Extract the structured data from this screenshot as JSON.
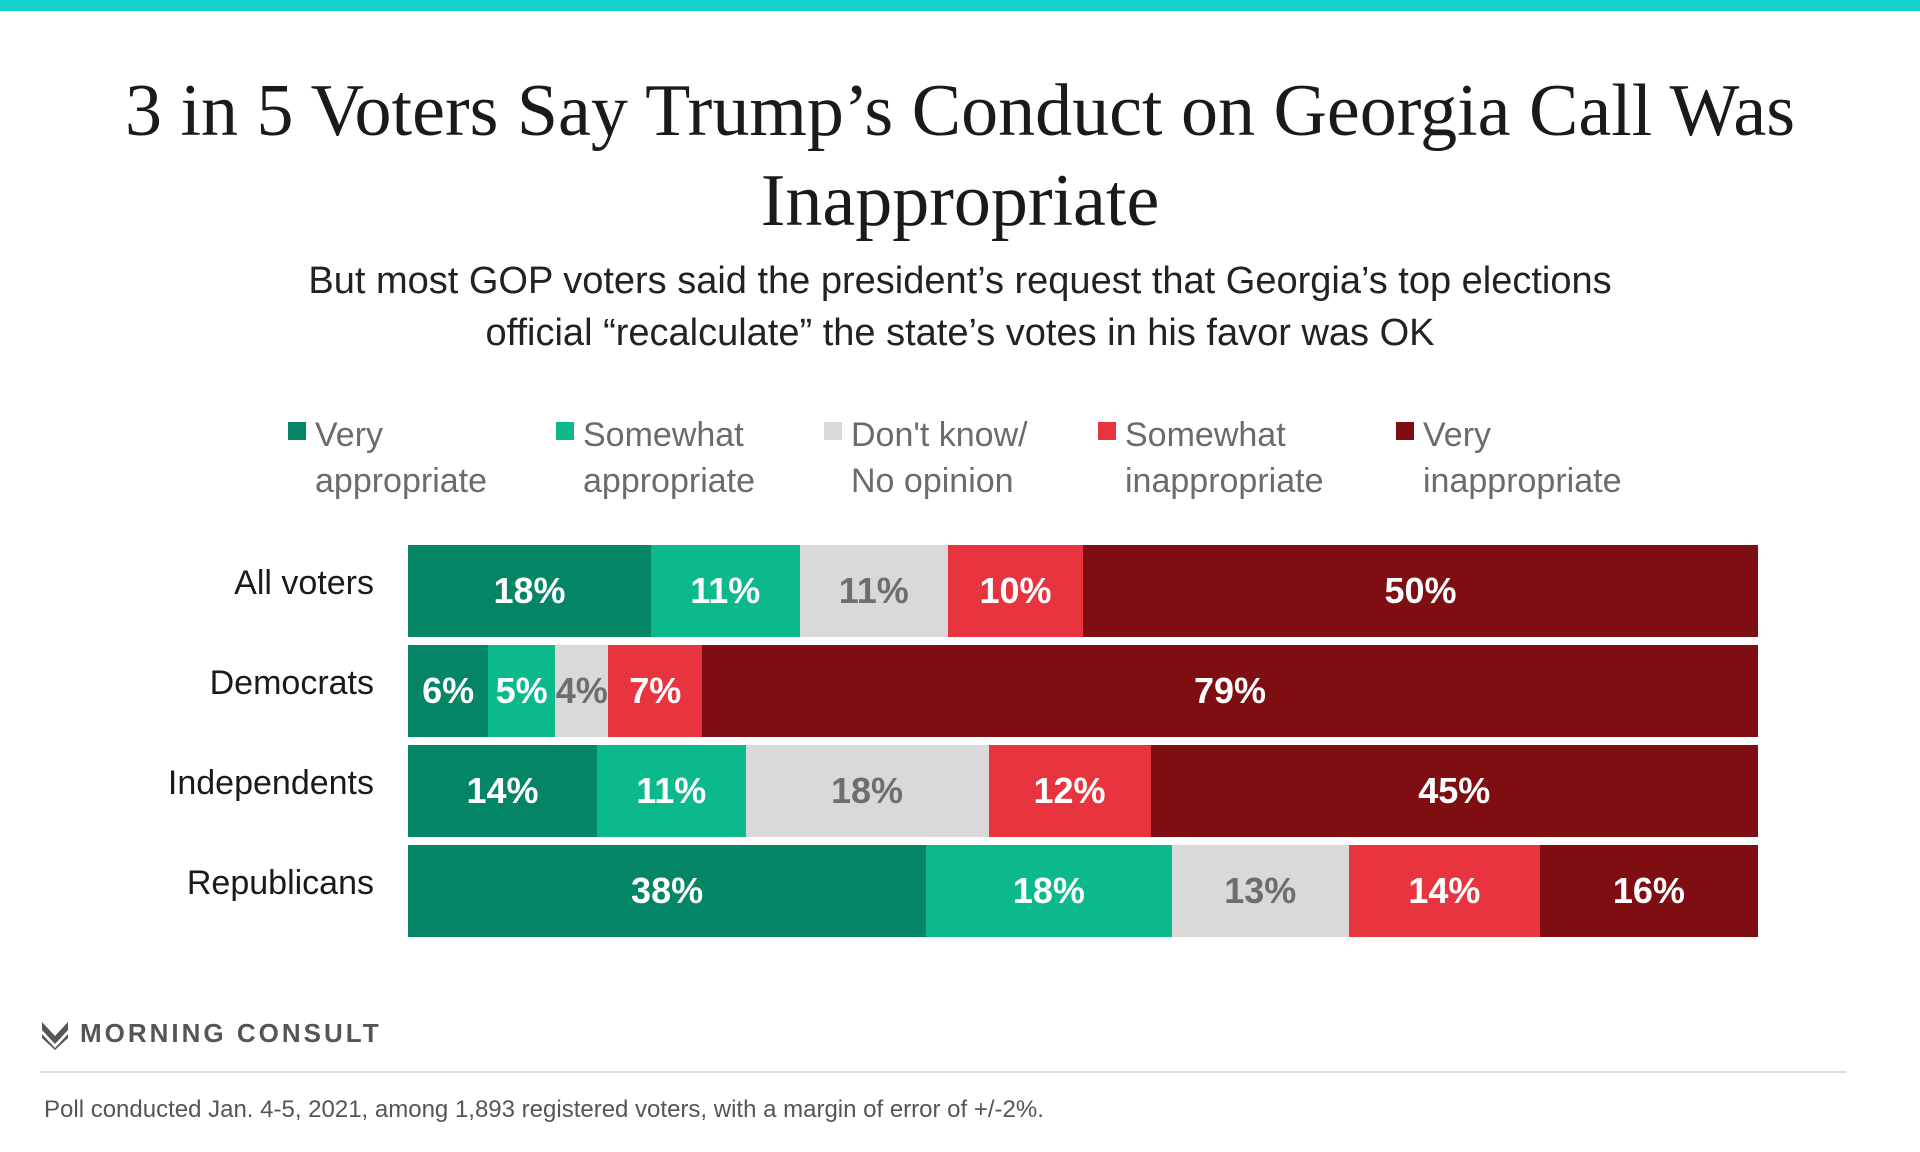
{
  "title": "3 in 5 Voters Say Trump’s Conduct on Georgia Call Was Inappropriate",
  "subtitle": "But most GOP voters said the president’s request that Georgia’s top elections official “recalculate” the state’s votes in his favor was OK",
  "colors": {
    "accent_bar": "#14d2cb",
    "very_appropriate": "#048565",
    "somewhat_appropriate": "#0bb98c",
    "dont_know": "#d9d9d9",
    "somewhat_inappropriate": "#e8343f",
    "very_inappropriate": "#7e0e12",
    "label_light": "#ffffff",
    "label_dark": "#6e6e6e"
  },
  "legend_placement": "top",
  "brand": {
    "name": "MORNING CONSULT",
    "icon": "morning-consult-logo-icon"
  },
  "footnote": "Poll conducted Jan. 4-5, 2021, among 1,893 registered voters, with a margin of error of +/-2%.",
  "chart_data": {
    "type": "bar",
    "orientation": "horizontal",
    "stacked": true,
    "categories": [
      "All voters",
      "Democrats",
      "Independents",
      "Republicans"
    ],
    "series": [
      {
        "name": "Very\nappropriate",
        "color": "#048565",
        "values": [
          18,
          6,
          14,
          38
        ],
        "labels": [
          "18%",
          "6%",
          "14%",
          "38%"
        ]
      },
      {
        "name": "Somewhat\nappropriate",
        "color": "#0bb98c",
        "values": [
          11,
          5,
          11,
          18
        ],
        "labels": [
          "11%",
          "5%",
          "11%",
          "18%"
        ]
      },
      {
        "name": "Don't know/\nNo opinion",
        "color": "#d9d9d9",
        "values": [
          11,
          4,
          18,
          13
        ],
        "labels": [
          "11%",
          "4%",
          "18%",
          "13%"
        ]
      },
      {
        "name": "Somewhat\ninappropriate",
        "color": "#e8343f",
        "values": [
          10,
          7,
          12,
          14
        ],
        "labels": [
          "10%",
          "7%",
          "12%",
          "14%"
        ]
      },
      {
        "name": "Very\ninappropriate",
        "color": "#7e0e12",
        "values": [
          50,
          79,
          45,
          16
        ],
        "labels": [
          "50%",
          "79%",
          "45%",
          "16%"
        ]
      }
    ]
  }
}
